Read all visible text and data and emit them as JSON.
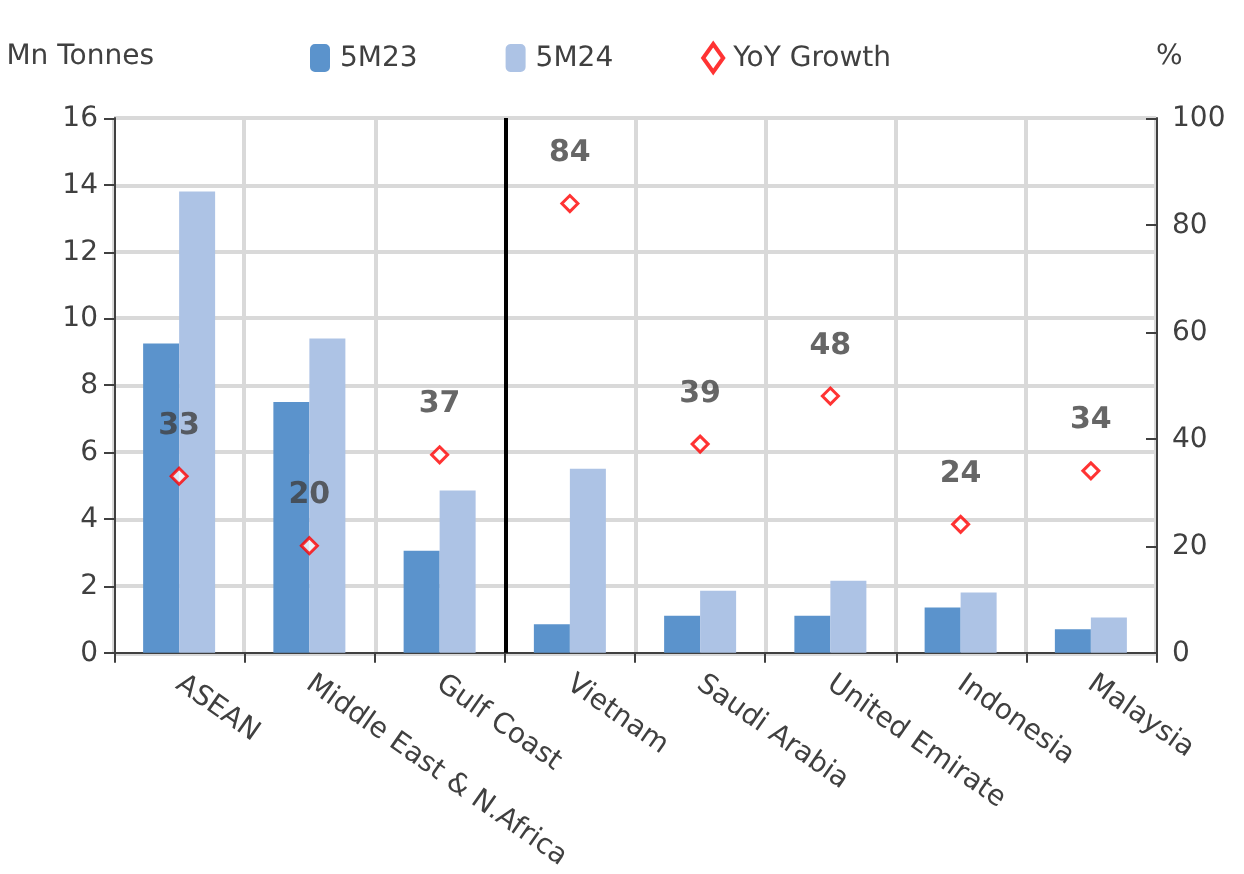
{
  "chart_data": {
    "type": "bar",
    "ylabel": "Mn Tonnes",
    "y2label": "%",
    "categories": [
      "ASEAN",
      "Middle East & N.Africa",
      "Gulf Coast",
      "Vietnam",
      "Saudi Arabia",
      "United Emirate",
      "Indonesia",
      "Malaysia"
    ],
    "series": [
      {
        "name": "5M23",
        "color": "#5b93cc",
        "values": [
          9.25,
          7.5,
          3.05,
          0.85,
          1.1,
          1.1,
          1.35,
          0.7
        ]
      },
      {
        "name": "5M24",
        "color": "#adc3e5",
        "values": [
          13.8,
          9.4,
          4.85,
          5.5,
          1.85,
          2.15,
          1.8,
          1.05
        ]
      },
      {
        "name": "YoY Growth",
        "type": "scatter",
        "axis": "y2",
        "color": "#ff0000",
        "marker": "diamond",
        "data_labels": true,
        "values": [
          33,
          20,
          37,
          84,
          39,
          48,
          24,
          34
        ]
      }
    ],
    "ylim": [
      0,
      16
    ],
    "yticks": [
      0,
      2,
      4,
      6,
      8,
      10,
      12,
      14,
      16
    ],
    "y2lim": [
      0,
      100
    ],
    "y2ticks": [
      0,
      20,
      40,
      60,
      80,
      100
    ],
    "ref_lines": [
      {
        "axis": "x",
        "value": "Vietnam",
        "color": "#000000"
      }
    ],
    "grid": true,
    "legend": "top"
  }
}
